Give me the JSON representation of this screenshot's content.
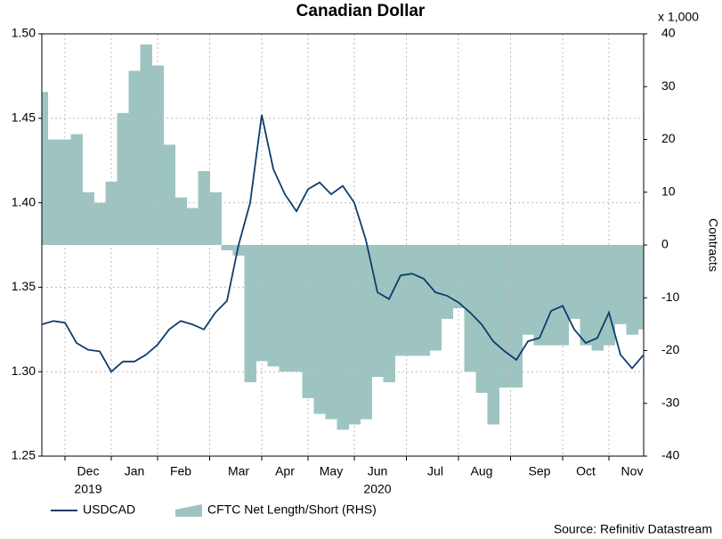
{
  "chart_data": {
    "type": "line-area",
    "title": "Canadian Dollar",
    "y2_unit": "x 1,000",
    "y2_label": "Contracts",
    "source": "Source: Refinitiv Datastream",
    "categories": [
      null,
      null,
      null,
      null,
      "Dec",
      null,
      null,
      null,
      "Jan",
      null,
      null,
      null,
      "Feb",
      null,
      null,
      null,
      null,
      "Mar",
      null,
      null,
      null,
      "Apr",
      null,
      null,
      null,
      "May",
      null,
      null,
      null,
      "Jun",
      null,
      null,
      null,
      null,
      "Jul",
      null,
      null,
      null,
      "Aug",
      null,
      null,
      null,
      null,
      "Sep",
      null,
      null,
      null,
      "Oct",
      null,
      null,
      null,
      "Nov",
      null
    ],
    "year_labels": [
      null,
      null,
      null,
      null,
      "2019",
      null,
      null,
      null,
      null,
      null,
      null,
      null,
      null,
      null,
      null,
      null,
      null,
      null,
      null,
      null,
      null,
      null,
      null,
      null,
      null,
      null,
      null,
      null,
      null,
      "2020",
      null,
      null,
      null,
      null,
      null,
      null,
      null,
      null,
      null,
      null,
      null,
      null,
      null,
      null,
      null,
      null,
      null,
      null,
      null,
      null,
      null,
      null,
      null
    ],
    "series": [
      {
        "name": "USDCAD",
        "color": "#0e3d6b",
        "axis": "y",
        "values": [
          1.328,
          1.33,
          1.329,
          1.317,
          1.313,
          1.312,
          1.3,
          1.306,
          1.306,
          1.31,
          1.316,
          1.325,
          1.33,
          1.328,
          1.325,
          1.335,
          1.342,
          1.375,
          1.4,
          1.452,
          1.42,
          1.405,
          1.395,
          1.408,
          1.412,
          1.405,
          1.41,
          1.4,
          1.378,
          1.347,
          1.343,
          1.357,
          1.358,
          1.355,
          1.347,
          1.345,
          1.341,
          1.335,
          1.328,
          1.318,
          1.312,
          1.307,
          1.318,
          1.32,
          1.336,
          1.339,
          1.325,
          1.317,
          1.32,
          1.335,
          1.31,
          1.302,
          1.31
        ]
      },
      {
        "name": "CFTC Net Length/Short (RHS)",
        "color": "#9ec4c1",
        "axis": "y2",
        "values": [
          29,
          20,
          20,
          21,
          10,
          8,
          12,
          25,
          33,
          38,
          34,
          19,
          9,
          7,
          14,
          10,
          -1,
          -2,
          -26,
          -22,
          -23,
          -24,
          -24,
          -29,
          -32,
          -33,
          -35,
          -34,
          -33,
          -25,
          -26,
          -21,
          -21,
          -21,
          -20,
          -14,
          -12,
          -24,
          -28,
          -34,
          -27,
          -27,
          -17,
          -19,
          -19,
          -19,
          -14,
          -19,
          -20,
          -19,
          -15,
          -17,
          -16
        ]
      }
    ],
    "ylim": [
      1.25,
      1.5
    ],
    "yticks": [
      1.25,
      {
        "value": 1.3,
        "label": "1.30"
      },
      1.35,
      {
        "value": 1.4,
        "label": "1.40"
      },
      1.45,
      {
        "value": 1.5,
        "label": "1.50"
      }
    ],
    "y2lim": [
      -40,
      40
    ],
    "y2ticks": [
      -40,
      -30,
      -20,
      -10,
      0,
      10,
      20,
      30,
      40
    ],
    "grid": true
  }
}
